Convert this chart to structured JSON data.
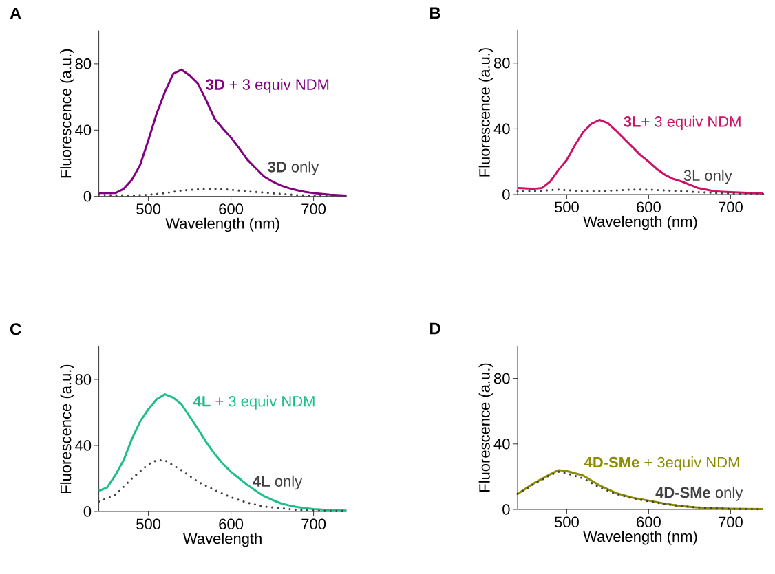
{
  "chart_data": [
    {
      "type": "line",
      "title": "A",
      "xlabel": "Wavelength (nm)",
      "ylabel": "Fluorescence (a.u.)",
      "xlim": [
        440,
        740
      ],
      "ylim": [
        0,
        100
      ],
      "xticks": [
        500,
        600,
        700
      ],
      "yticks": [
        0,
        40,
        80
      ],
      "marker": "none",
      "series": [
        {
          "name": "**3D** + 3 equiv NDM",
          "color": "#800080",
          "line_style": "solid",
          "x": [
            440,
            460,
            470,
            480,
            490,
            500,
            510,
            520,
            530,
            540,
            550,
            560,
            570,
            580,
            590,
            600,
            610,
            620,
            630,
            640,
            650,
            660,
            670,
            680,
            690,
            700,
            720,
            740
          ],
          "values": [
            2,
            2,
            4.5,
            10,
            19,
            34,
            50,
            63,
            74,
            76.5,
            73,
            68,
            58,
            47,
            41,
            35.5,
            29,
            22,
            17,
            12,
            9,
            6.7,
            5,
            3.7,
            2.7,
            2,
            1,
            0.5
          ]
        },
        {
          "name": "**3D** only",
          "color": "#404040",
          "line_style": "dotted",
          "x": [
            440,
            460,
            480,
            500,
            520,
            540,
            560,
            580,
            600,
            620,
            640,
            660,
            680,
            700,
            720,
            740
          ],
          "values": [
            1,
            0.7,
            0.5,
            1,
            2,
            3.5,
            4.3,
            4.6,
            4,
            3,
            2.3,
            1.5,
            0.8,
            0.5,
            0.3,
            0.2
          ]
        }
      ]
    },
    {
      "type": "line",
      "title": "B",
      "xlabel": "Wavelength (nm)",
      "ylabel": "Fluorescence (a.u.)",
      "xlim": [
        440,
        740
      ],
      "ylim": [
        0,
        100
      ],
      "xticks": [
        500,
        600,
        700
      ],
      "yticks": [
        0,
        40,
        80
      ],
      "marker": "none",
      "series": [
        {
          "name": "**3L**+ 3 equiv NDM",
          "color": "#cc1166",
          "line_style": "solid",
          "x": [
            440,
            460,
            470,
            480,
            490,
            500,
            510,
            520,
            530,
            540,
            550,
            560,
            570,
            580,
            590,
            600,
            610,
            620,
            630,
            640,
            650,
            660,
            670,
            680,
            690,
            700,
            720,
            740
          ],
          "values": [
            4,
            3.5,
            4,
            8,
            15,
            21,
            30,
            38,
            43,
            45.4,
            43.6,
            39,
            34,
            29,
            24,
            20,
            15.5,
            12,
            9.5,
            8,
            6,
            4,
            3,
            2,
            1.7,
            1.5,
            1,
            0.7
          ]
        },
        {
          "name": "3L only",
          "color": "#404040",
          "line_style": "dotted",
          "x": [
            440,
            460,
            490,
            520,
            540,
            560,
            580,
            600,
            620,
            640,
            660,
            680,
            700,
            720,
            740
          ],
          "values": [
            2,
            2,
            3,
            2,
            2,
            2.5,
            3,
            3,
            2.5,
            2,
            1.5,
            1,
            0.7,
            0.5,
            0.3
          ]
        }
      ]
    },
    {
      "type": "line",
      "title": "C",
      "xlabel": "Wavelength",
      "ylabel": "Fluorescence (a.u.)",
      "xlim": [
        440,
        740
      ],
      "ylim": [
        0,
        100
      ],
      "xticks": [
        500,
        600,
        700
      ],
      "yticks": [
        0,
        40,
        80
      ],
      "marker": "none",
      "series": [
        {
          "name": "**4L** + 3 equiv NDM",
          "color": "#1dbf86",
          "line_style": "solid",
          "x": [
            440,
            450,
            460,
            470,
            480,
            490,
            500,
            510,
            520,
            530,
            540,
            550,
            560,
            570,
            580,
            590,
            600,
            610,
            620,
            630,
            640,
            650,
            660,
            670,
            680,
            690,
            700,
            720,
            740
          ],
          "values": [
            12.5,
            14.5,
            22,
            31,
            44,
            54.5,
            62,
            68,
            71,
            69,
            65,
            57.5,
            50,
            42,
            35,
            29,
            24,
            20,
            16,
            12.5,
            9.3,
            7,
            5,
            3.7,
            2.7,
            2,
            1.5,
            0.8,
            0.5
          ]
        },
        {
          "name": "**4L** only",
          "color": "#404040",
          "line_style": "dotted",
          "x": [
            440,
            460,
            480,
            500,
            510,
            520,
            540,
            560,
            580,
            600,
            620,
            640,
            660,
            680,
            700,
            720,
            740
          ],
          "values": [
            6,
            10,
            20,
            28.6,
            31,
            31,
            25,
            18,
            13,
            8.6,
            5.3,
            3,
            2,
            1,
            0.5,
            0.3,
            0.2
          ]
        }
      ]
    },
    {
      "type": "line",
      "title": "D",
      "xlabel": "Wavelength (nm)",
      "ylabel": "Fluorescence (a.u.)",
      "xlim": [
        440,
        740
      ],
      "ylim": [
        0,
        100
      ],
      "xticks": [
        500,
        600,
        700
      ],
      "yticks": [
        0,
        40,
        80
      ],
      "marker": "none",
      "series": [
        {
          "name": "**4D-SMe**  + 3equiv NDM",
          "color": "#8c8c00",
          "line_style": "solid",
          "x": [
            440,
            460,
            480,
            490,
            500,
            520,
            540,
            560,
            580,
            600,
            620,
            640,
            660,
            680,
            700,
            740
          ],
          "values": [
            9.5,
            16,
            21.5,
            24,
            23.4,
            20.7,
            14.7,
            10,
            7.2,
            5.4,
            3.5,
            2,
            1.2,
            0.7,
            0.4,
            0.2
          ]
        },
        {
          "name": "**4D-SMe** only",
          "color": "#404040",
          "line_style": "dotted",
          "x": [
            440,
            460,
            480,
            490,
            500,
            520,
            540,
            560,
            580,
            600,
            620,
            640,
            660,
            680,
            700,
            740
          ],
          "values": [
            9.5,
            15.5,
            21,
            23,
            22,
            19,
            13.5,
            9.5,
            6.8,
            5,
            3.3,
            2,
            1.2,
            0.6,
            0.3,
            0.1
          ]
        }
      ]
    }
  ]
}
